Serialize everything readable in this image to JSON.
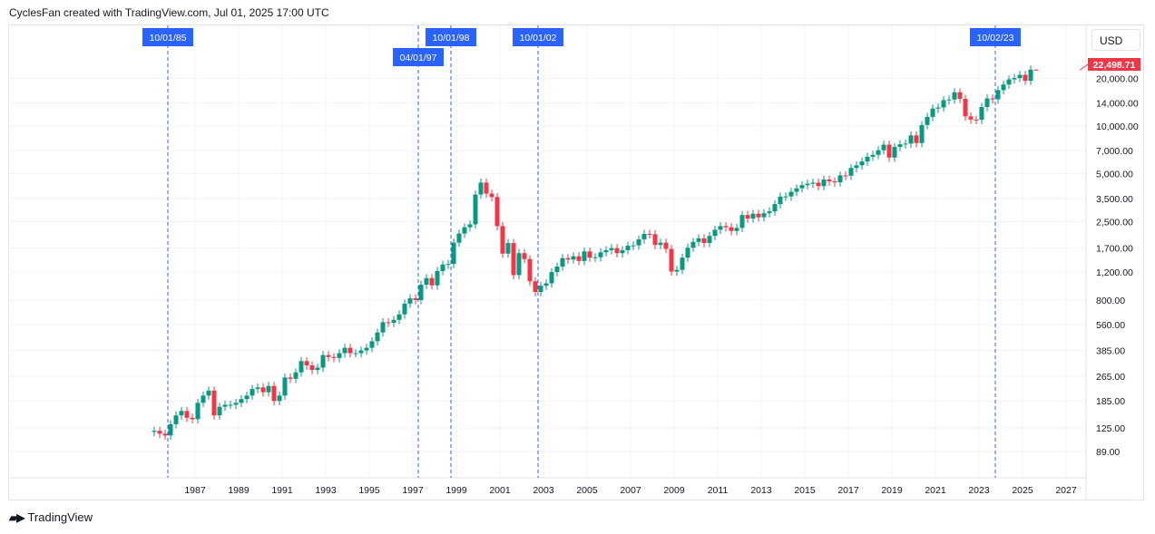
{
  "header": {
    "title": "CyclesFan created with TradingView.com, Jul 01, 2025 17:00 UTC"
  },
  "currency": "USD",
  "footer": {
    "brand": "TradingView"
  },
  "colors": {
    "up": "#089981",
    "down": "#f23645",
    "marker": "#2962ff",
    "grid": "#f0f3fa"
  },
  "chart_data": {
    "type": "candlestick",
    "interval": "quarterly",
    "y_scale": "log",
    "grid": true,
    "last_price": "22,498.71",
    "y_ticks": [
      "20,000.00",
      "14,000.00",
      "10,000.00",
      "7,000.00",
      "5,000.00",
      "3,500.00",
      "2,500.00",
      "1,700.00",
      "1,200.00",
      "800.00",
      "560.00",
      "385.00",
      "265.00",
      "185.00",
      "125.00",
      "89.00"
    ],
    "x_ticks": [
      "1987",
      "1989",
      "1991",
      "1993",
      "1995",
      "1997",
      "1999",
      "2001",
      "2003",
      "2005",
      "2007",
      "2009",
      "2011",
      "2013",
      "2015",
      "2017",
      "2019",
      "2021",
      "2023",
      "2025",
      "2027"
    ],
    "markers": [
      {
        "label": "10/01/85",
        "year": 1985.75
      },
      {
        "label": "10/01/98",
        "year": 1998.75
      },
      {
        "label": "04/01/97",
        "year": 1997.25
      },
      {
        "label": "10/01/02",
        "year": 2002.75
      },
      {
        "label": "10/02/23",
        "year": 2023.75
      }
    ],
    "first_open": 118,
    "quarterly_close": {
      "1985": [
        120,
        115,
        112,
        132
      ],
      "1986": [
        150,
        160,
        145,
        142
      ],
      "1987": [
        180,
        200,
        215,
        150
      ],
      "1988": [
        170,
        175,
        175,
        180
      ],
      "1989": [
        190,
        200,
        220,
        225
      ],
      "1990": [
        210,
        230,
        185,
        200
      ],
      "1991": [
        260,
        255,
        280,
        330
      ],
      "1992": [
        310,
        290,
        300,
        360
      ],
      "1993": [
        350,
        345,
        370,
        400
      ],
      "1994": [
        370,
        370,
        385,
        400
      ],
      "1995": [
        440,
        500,
        580,
        575
      ],
      "1996": [
        600,
        650,
        760,
        820
      ],
      "1997": [
        800,
        1000,
        1100,
        990
      ],
      "1998": [
        1220,
        1340,
        1350,
        1840
      ],
      "1999": [
        2100,
        2300,
        2400,
        3700
      ],
      "2000": [
        4400,
        3750,
        3570,
        2340
      ],
      "2001": [
        1570,
        1830,
        1150,
        1580
      ],
      "2002": [
        1450,
        1050,
        900,
        985
      ],
      "2003": [
        1020,
        1200,
        1300,
        1470
      ],
      "2004": [
        1440,
        1510,
        1410,
        1620
      ],
      "2005": [
        1480,
        1490,
        1600,
        1650
      ],
      "2006": [
        1700,
        1580,
        1650,
        1760
      ],
      "2007": [
        1770,
        1930,
        2090,
        2080
      ],
      "2008": [
        1780,
        1840,
        1680,
        1210
      ],
      "2009": [
        1240,
        1480,
        1710,
        1860
      ],
      "2010": [
        1960,
        1830,
        2030,
        2220
      ],
      "2011": [
        2340,
        2300,
        2180,
        2280
      ],
      "2012": [
        2750,
        2610,
        2800,
        2660
      ],
      "2013": [
        2820,
        2900,
        3220,
        3590
      ],
      "2014": [
        3600,
        3850,
        4050,
        4240
      ],
      "2015": [
        4330,
        4400,
        4180,
        4600
      ],
      "2016": [
        4480,
        4420,
        4880,
        4860
      ],
      "2017": [
        5440,
        5650,
        5980,
        6400
      ],
      "2018": [
        6580,
        7040,
        7630,
        6330
      ],
      "2019": [
        7380,
        7670,
        7750,
        8730
      ],
      "2020": [
        7810,
        10150,
        11420,
        12890
      ],
      "2021": [
        13090,
        14550,
        14690,
        16320
      ],
      "2022": [
        14840,
        11500,
        10980,
        10940
      ],
      "2023": [
        13180,
        14920,
        14720,
        16830
      ],
      "2024": [
        18250,
        19680,
        20060,
        21010
      ],
      "2025": [
        19280,
        22680,
        22498.71
      ]
    }
  }
}
